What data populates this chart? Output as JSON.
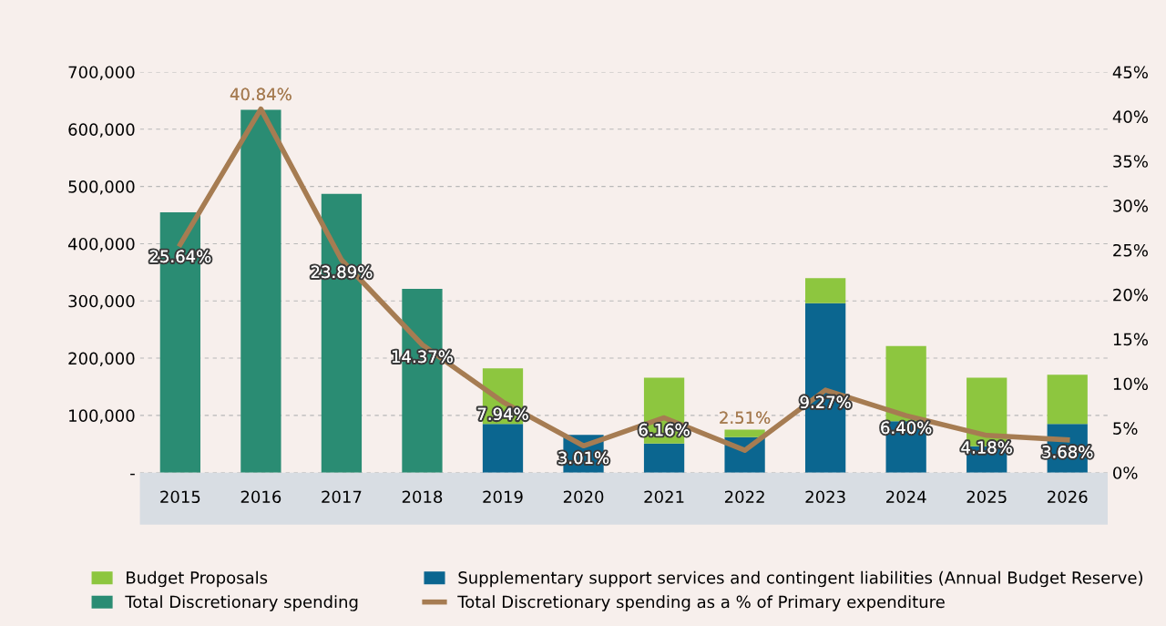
{
  "chart_data": {
    "type": "bar",
    "stacked": true,
    "categories": [
      "2015",
      "2016",
      "2017",
      "2018",
      "2019",
      "2020",
      "2021",
      "2022",
      "2023",
      "2024",
      "2025",
      "2026"
    ],
    "series": [
      {
        "name": "Total Discretionary spending",
        "color": "#2a8c73",
        "values": [
          455000,
          634000,
          487000,
          321000,
          null,
          null,
          null,
          null,
          null,
          null,
          null,
          null
        ]
      },
      {
        "name": "Supplementary support services and contingent liabilities (Annual Budget Reserve)",
        "color": "#0b6690",
        "values": [
          null,
          null,
          null,
          null,
          85000,
          66000,
          51000,
          62000,
          296000,
          90000,
          46000,
          85000
        ]
      },
      {
        "name": "Budget Proposals",
        "color": "#8dc63f",
        "values": [
          null,
          null,
          null,
          null,
          97000,
          null,
          115000,
          13000,
          44000,
          131000,
          120000,
          86000
        ]
      },
      {
        "name": "Total Discretionary spending as a % of Primary expenditure",
        "color": "#a67c52",
        "type": "line",
        "axis": "y2",
        "marker": "none",
        "values": [
          25.64,
          40.84,
          23.89,
          14.37,
          7.94,
          3.01,
          6.16,
          2.51,
          9.27,
          6.4,
          4.18,
          3.68
        ],
        "value_labels": [
          "25.64%",
          "40.84%",
          "23.89%",
          "14.37%",
          "7.94%",
          "3.01%",
          "6.16%",
          "2.51%",
          "9.27%",
          "6.40%",
          "4.18%",
          "3.68%"
        ]
      }
    ],
    "ylim": [
      0,
      700000
    ],
    "yticks": [
      {
        "value": 0,
        "label": "-"
      },
      {
        "value": 100000,
        "label": "100,000"
      },
      {
        "value": 200000,
        "label": "200,000"
      },
      {
        "value": 300000,
        "label": "300,000"
      },
      {
        "value": 400000,
        "label": "400,000"
      },
      {
        "value": 500000,
        "label": "500,000"
      },
      {
        "value": 600000,
        "label": "600,000"
      },
      {
        "value": 700000,
        "label": "700,000"
      }
    ],
    "y2lim": [
      0,
      45
    ],
    "y2ticks": [
      {
        "value": 0,
        "label": "0%"
      },
      {
        "value": 5,
        "label": "5%"
      },
      {
        "value": 10,
        "label": "10%"
      },
      {
        "value": 15,
        "label": "15%"
      },
      {
        "value": 20,
        "label": "20%"
      },
      {
        "value": 25,
        "label": "25%"
      },
      {
        "value": 30,
        "label": "30%"
      },
      {
        "value": 35,
        "label": "35%"
      },
      {
        "value": 40,
        "label": "40%"
      },
      {
        "value": 45,
        "label": "45%"
      }
    ],
    "grid": "y",
    "legend": "bottom"
  }
}
